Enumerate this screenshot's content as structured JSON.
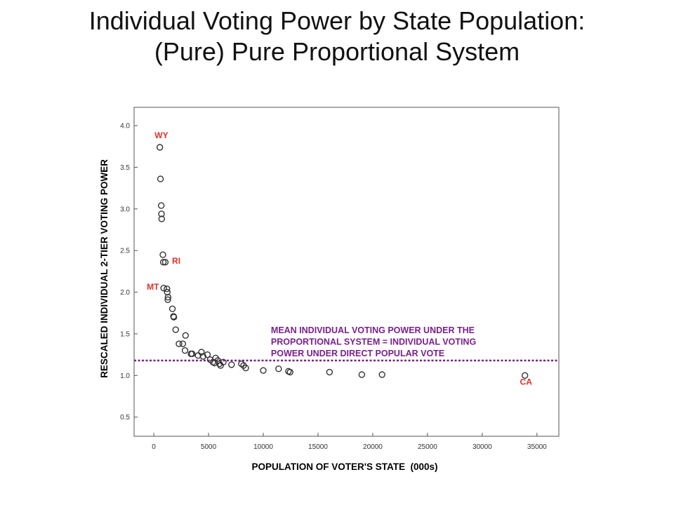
{
  "title": {
    "line1": "Individual Voting Power by State Population:",
    "line2": "(Pure) Pure Proportional System"
  },
  "colors": {
    "points": "#333333",
    "state_labels": "#e0302a",
    "mean_line": "#7a1f8c"
  },
  "chart_data": {
    "type": "scatter",
    "xlabel": "POPULATION OF VOTER'S STATE  (000s)",
    "ylabel": "RESCALED INDIVIDUAL 2-TIER VOTING POWER",
    "xlim": [
      -1800,
      37000
    ],
    "ylim": [
      0.27,
      4.22
    ],
    "xticks": [
      0,
      5000,
      10000,
      15000,
      20000,
      25000,
      30000,
      35000
    ],
    "yticks": [
      0.5,
      1.0,
      1.5,
      2.0,
      2.5,
      3.0,
      3.5,
      4.0
    ],
    "ytick_labels": [
      "0.5",
      "1.0",
      "1.5",
      "2.0",
      "2.5",
      "3.0",
      "3.5",
      "4.0"
    ],
    "grid": false,
    "points": [
      {
        "x": 550,
        "y": 3.74
      },
      {
        "x": 610,
        "y": 3.36
      },
      {
        "x": 680,
        "y": 3.04
      },
      {
        "x": 700,
        "y": 2.94
      },
      {
        "x": 720,
        "y": 2.88
      },
      {
        "x": 830,
        "y": 2.45
      },
      {
        "x": 870,
        "y": 2.36
      },
      {
        "x": 1050,
        "y": 2.36
      },
      {
        "x": 900,
        "y": 2.05
      },
      {
        "x": 1200,
        "y": 2.04
      },
      {
        "x": 1230,
        "y": 2.0
      },
      {
        "x": 1300,
        "y": 1.94
      },
      {
        "x": 1280,
        "y": 1.91
      },
      {
        "x": 1700,
        "y": 1.8
      },
      {
        "x": 1800,
        "y": 1.71
      },
      {
        "x": 1830,
        "y": 1.7
      },
      {
        "x": 2000,
        "y": 1.55
      },
      {
        "x": 2900,
        "y": 1.48
      },
      {
        "x": 2300,
        "y": 1.38
      },
      {
        "x": 2650,
        "y": 1.38
      },
      {
        "x": 2850,
        "y": 1.3
      },
      {
        "x": 3400,
        "y": 1.26
      },
      {
        "x": 3500,
        "y": 1.26
      },
      {
        "x": 4050,
        "y": 1.24
      },
      {
        "x": 4350,
        "y": 1.28
      },
      {
        "x": 4500,
        "y": 1.23
      },
      {
        "x": 4900,
        "y": 1.25
      },
      {
        "x": 5150,
        "y": 1.19
      },
      {
        "x": 5400,
        "y": 1.16
      },
      {
        "x": 5550,
        "y": 1.15
      },
      {
        "x": 5650,
        "y": 1.21
      },
      {
        "x": 5850,
        "y": 1.18
      },
      {
        "x": 6000,
        "y": 1.14
      },
      {
        "x": 6100,
        "y": 1.12
      },
      {
        "x": 6350,
        "y": 1.16
      },
      {
        "x": 7100,
        "y": 1.13
      },
      {
        "x": 8000,
        "y": 1.14
      },
      {
        "x": 8200,
        "y": 1.12
      },
      {
        "x": 8400,
        "y": 1.09
      },
      {
        "x": 10000,
        "y": 1.06
      },
      {
        "x": 11400,
        "y": 1.08
      },
      {
        "x": 12300,
        "y": 1.05
      },
      {
        "x": 12450,
        "y": 1.04
      },
      {
        "x": 16050,
        "y": 1.04
      },
      {
        "x": 19000,
        "y": 1.01
      },
      {
        "x": 20850,
        "y": 1.01
      },
      {
        "x": 33900,
        "y": 1.0
      }
    ],
    "state_labels": [
      {
        "text": "WY",
        "x": 700,
        "y": 3.85
      },
      {
        "text": "RI",
        "x": 2050,
        "y": 2.34
      },
      {
        "text": "MT",
        "x": -80,
        "y": 2.03
      },
      {
        "text": "CA",
        "x": 34000,
        "y": 0.89
      }
    ],
    "mean_line": {
      "y": 1.18
    },
    "annotation": [
      "MEAN INDIVIDUAL VOTING POWER UNDER THE",
      "PROPORTIONAL SYSTEM = INDIVIDUAL VOTING",
      "POWER UNDER DIRECT POPULAR VOTE"
    ]
  }
}
